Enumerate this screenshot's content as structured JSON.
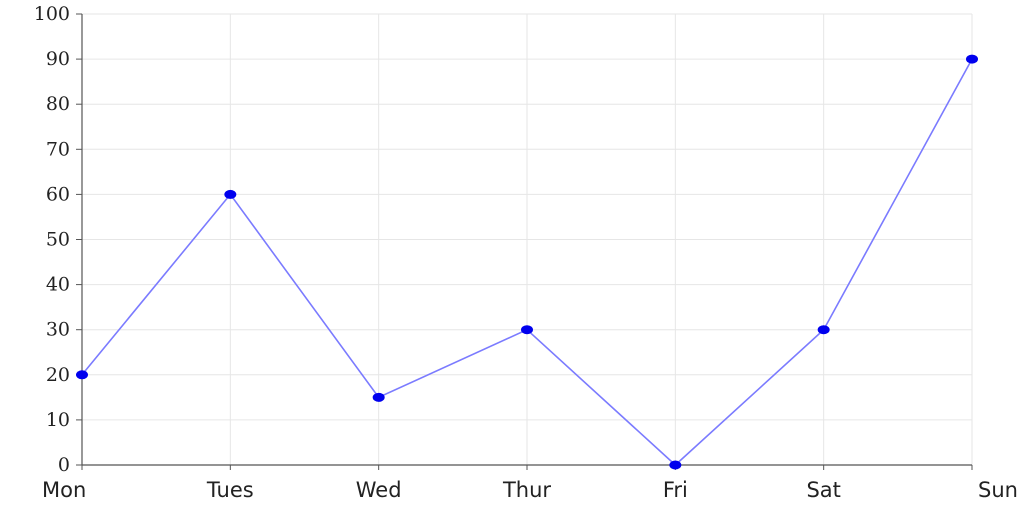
{
  "chart_data": {
    "type": "line",
    "categories": [
      "Mon",
      "Tues",
      "Wed",
      "Thur",
      "Fri",
      "Sat",
      "Sun"
    ],
    "series": [
      {
        "values": [
          20,
          60,
          15,
          30,
          0,
          30,
          90
        ]
      }
    ],
    "ylim": [
      0,
      100
    ],
    "yticks": [
      0,
      10,
      20,
      30,
      40,
      50,
      60,
      70,
      80,
      90,
      100
    ],
    "grid": true,
    "line_color": "#7b7bff",
    "marker_color": "#0000ee",
    "grid_color": "#e6e6e6",
    "axis_color": "#555555"
  }
}
